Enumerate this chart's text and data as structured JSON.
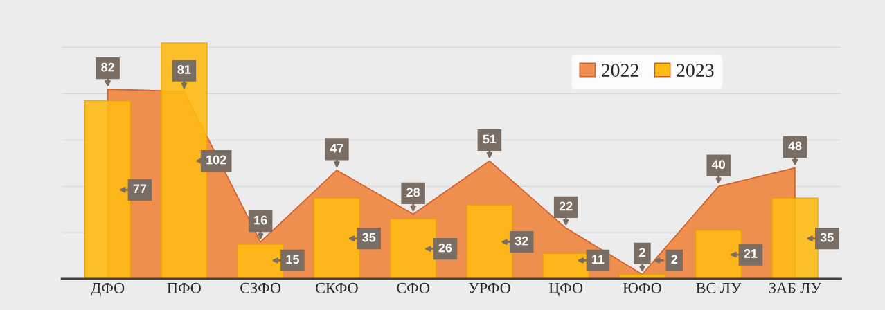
{
  "chart_data": {
    "type": "bar",
    "categories": [
      "ДФО",
      "ПФО",
      "СЗФО",
      "СКФО",
      "СФО",
      "УРФО",
      "ЦФО",
      "ЮФО",
      "ВС ЛУ",
      "ЗАБ ЛУ"
    ],
    "series": [
      {
        "name": "2022",
        "type": "area",
        "color": "#ef8f4f",
        "values": [
          82,
          81,
          16,
          47,
          28,
          51,
          22,
          2,
          40,
          48
        ]
      },
      {
        "name": "2023",
        "color": "#fdbb14",
        "values": [
          77,
          102,
          15,
          35,
          26,
          32,
          11,
          2,
          21,
          35
        ]
      }
    ],
    "yticks": [
      {
        "value": 0,
        "label": null
      },
      {
        "value": 20,
        "label": null
      },
      {
        "value": 40,
        "label": null
      },
      {
        "value": 60,
        "label": null
      },
      {
        "value": 80,
        "label": null
      },
      {
        "value": 100,
        "label": null
      }
    ],
    "grid": "y",
    "legend": "top right",
    "data_labels": true
  }
}
